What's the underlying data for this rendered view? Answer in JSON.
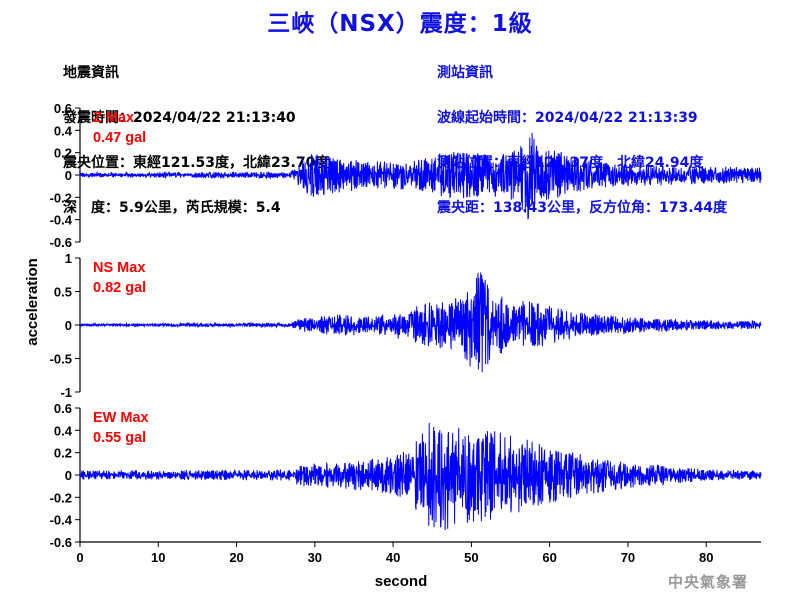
{
  "title": "三峽（NSX）震度：1級",
  "earthquake_info": {
    "heading": "地震資訊",
    "time": "發震時間：2024/04/22 21:13:40",
    "location": "震央位置：東經121.53度，北緯23.70度",
    "depth_magnitude": "深　度：5.9公里，芮氏規模：5.4"
  },
  "station_info": {
    "heading": "測站資訊",
    "wave_start": "波線起始時間：2024/04/22 21:13:39",
    "location": "測站位置：東經121.37度，北緯24.94度",
    "distance": "震央距：138.43公里，反方位角：173.44度"
  },
  "agency": "中央氣象署",
  "colors": {
    "title": "#1010e0",
    "trace": "#0000ff",
    "max_label": "#ff0000",
    "station_info": "#1010e0"
  },
  "chart_data": {
    "type": "line",
    "xlabel": "second",
    "ylabel": "acceleration",
    "xlim": [
      0,
      87
    ],
    "xticks": [
      0,
      10,
      20,
      30,
      40,
      50,
      60,
      70,
      80
    ],
    "xtick_labels": [
      "0",
      "10",
      "20",
      "30",
      "40",
      "50",
      "60",
      "70",
      "80"
    ],
    "grid": false,
    "panels": [
      {
        "component": "Z",
        "label": "Z Max",
        "max_value": "0.47 gal",
        "max": 0.47,
        "ylim": [
          -0.6,
          0.6
        ],
        "yticks": [
          -0.6,
          -0.4,
          -0.2,
          0,
          0.2,
          0.4,
          0.6
        ],
        "ytick_labels": [
          "-0.6",
          "-0.4",
          "-0.2",
          "0",
          "0.2",
          "0.4",
          "0.6"
        ],
        "envelope": [
          [
            0,
            0.02
          ],
          [
            27,
            0.03
          ],
          [
            28,
            0.15
          ],
          [
            30,
            0.2
          ],
          [
            33,
            0.16
          ],
          [
            36,
            0.14
          ],
          [
            39,
            0.12
          ],
          [
            43,
            0.14
          ],
          [
            46,
            0.2
          ],
          [
            50,
            0.22
          ],
          [
            52,
            0.18
          ],
          [
            56,
            0.24
          ],
          [
            57,
            0.47
          ],
          [
            59,
            0.25
          ],
          [
            62,
            0.2
          ],
          [
            66,
            0.12
          ],
          [
            70,
            0.1
          ],
          [
            80,
            0.08
          ],
          [
            87,
            0.07
          ]
        ]
      },
      {
        "component": "NS",
        "label": "NS Max",
        "max_value": "0.82 gal",
        "max": 0.82,
        "ylim": [
          -1,
          1
        ],
        "yticks": [
          -1,
          -0.5,
          0,
          0.5,
          1
        ],
        "ytick_labels": [
          "-1",
          "-0.5",
          "0",
          "0.5",
          "1"
        ],
        "envelope": [
          [
            0,
            0.02
          ],
          [
            27,
            0.03
          ],
          [
            28,
            0.1
          ],
          [
            33,
            0.16
          ],
          [
            38,
            0.14
          ],
          [
            42,
            0.25
          ],
          [
            45,
            0.35
          ],
          [
            48,
            0.4
          ],
          [
            51,
            0.82
          ],
          [
            53,
            0.45
          ],
          [
            56,
            0.38
          ],
          [
            60,
            0.3
          ],
          [
            64,
            0.18
          ],
          [
            70,
            0.12
          ],
          [
            80,
            0.07
          ],
          [
            87,
            0.06
          ]
        ]
      },
      {
        "component": "EW",
        "label": "EW Max",
        "max_value": "0.55 gal",
        "max": 0.55,
        "ylim": [
          -0.6,
          0.6
        ],
        "yticks": [
          -0.6,
          -0.4,
          -0.2,
          0,
          0.2,
          0.4,
          0.6
        ],
        "ytick_labels": [
          "-0.6",
          "-0.4",
          "-0.2",
          "0",
          "0.2",
          "0.4",
          "0.6"
        ],
        "envelope": [
          [
            0,
            0.04
          ],
          [
            27,
            0.05
          ],
          [
            28,
            0.1
          ],
          [
            33,
            0.12
          ],
          [
            38,
            0.16
          ],
          [
            42,
            0.22
          ],
          [
            45,
            0.55
          ],
          [
            48,
            0.45
          ],
          [
            51,
            0.42
          ],
          [
            54,
            0.38
          ],
          [
            58,
            0.3
          ],
          [
            62,
            0.22
          ],
          [
            66,
            0.16
          ],
          [
            70,
            0.12
          ],
          [
            80,
            0.05
          ],
          [
            87,
            0.04
          ]
        ]
      }
    ]
  }
}
